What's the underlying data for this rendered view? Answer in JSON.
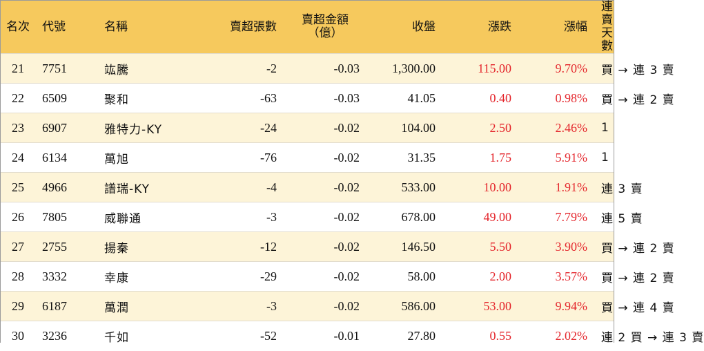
{
  "colors": {
    "header_bg": "#f6c95d",
    "odd_row_bg": "#fdf4d8",
    "up": "#e4262c"
  },
  "headers": {
    "rank": "名次",
    "code": "代號",
    "name": "名稱",
    "short_lots": "賣超張數",
    "short_amount_l1": "賣超金額",
    "short_amount_l2": "（億）",
    "close": "收盤",
    "change": "漲跌",
    "pct": "漲幅",
    "streak": "連賣天數"
  },
  "rows": [
    {
      "rank": "21",
      "code": "7751",
      "name": "竑騰",
      "lots": "-2",
      "amount": "-0.03",
      "close": "1,300.00",
      "change": "115.00",
      "pct": "9.70%",
      "streak": "買 → 連 3 賣"
    },
    {
      "rank": "22",
      "code": "6509",
      "name": "聚和",
      "lots": "-63",
      "amount": "-0.03",
      "close": "41.05",
      "change": "0.40",
      "pct": "0.98%",
      "streak": "買 → 連 2 賣"
    },
    {
      "rank": "23",
      "code": "6907",
      "name": "雅特力-KY",
      "lots": "-24",
      "amount": "-0.02",
      "close": "104.00",
      "change": "2.50",
      "pct": "2.46%",
      "streak": "1"
    },
    {
      "rank": "24",
      "code": "6134",
      "name": "萬旭",
      "lots": "-76",
      "amount": "-0.02",
      "close": "31.35",
      "change": "1.75",
      "pct": "5.91%",
      "streak": "1"
    },
    {
      "rank": "25",
      "code": "4966",
      "name": "譜瑞-KY",
      "lots": "-4",
      "amount": "-0.02",
      "close": "533.00",
      "change": "10.00",
      "pct": "1.91%",
      "streak": "連 3 賣"
    },
    {
      "rank": "26",
      "code": "7805",
      "name": "威聯通",
      "lots": "-3",
      "amount": "-0.02",
      "close": "678.00",
      "change": "49.00",
      "pct": "7.79%",
      "streak": "連 5 賣"
    },
    {
      "rank": "27",
      "code": "2755",
      "name": "揚秦",
      "lots": "-12",
      "amount": "-0.02",
      "close": "146.50",
      "change": "5.50",
      "pct": "3.90%",
      "streak": "買 → 連 2 賣"
    },
    {
      "rank": "28",
      "code": "3332",
      "name": "幸康",
      "lots": "-29",
      "amount": "-0.02",
      "close": "58.00",
      "change": "2.00",
      "pct": "3.57%",
      "streak": "買 → 連 2 賣"
    },
    {
      "rank": "29",
      "code": "6187",
      "name": "萬潤",
      "lots": "-3",
      "amount": "-0.02",
      "close": "586.00",
      "change": "53.00",
      "pct": "9.94%",
      "streak": "買 → 連 4 賣"
    },
    {
      "rank": "30",
      "code": "3236",
      "name": "千如",
      "lots": "-52",
      "amount": "-0.01",
      "close": "27.80",
      "change": "0.55",
      "pct": "2.02%",
      "streak": "連 2 買 → 連 3 賣"
    }
  ]
}
